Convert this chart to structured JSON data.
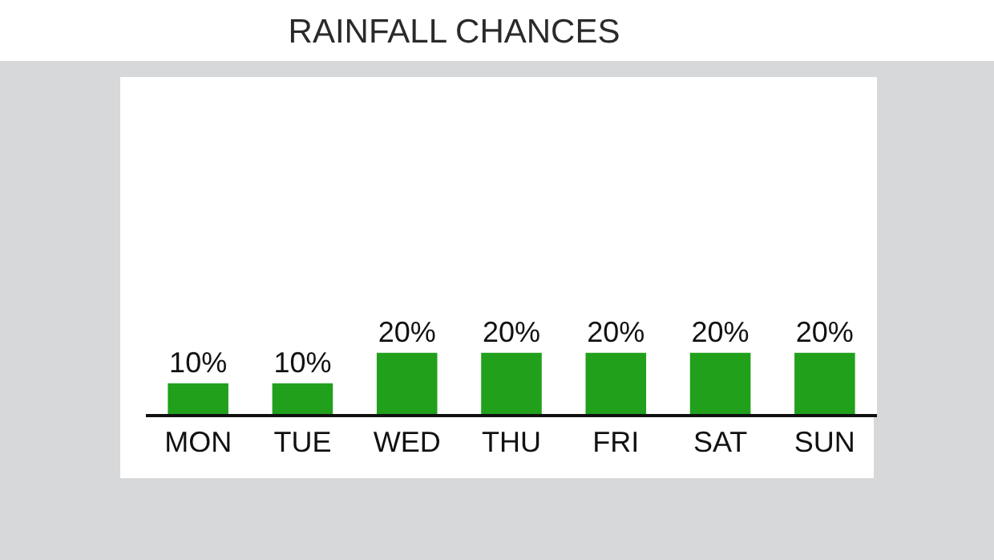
{
  "chart_data": {
    "type": "bar",
    "title": "RAINFALL CHANCES",
    "categories": [
      "MON",
      "TUE",
      "WED",
      "THU",
      "FRI",
      "SAT",
      "SUN"
    ],
    "values": [
      10,
      10,
      20,
      20,
      20,
      20,
      20
    ],
    "value_labels": [
      "10%",
      "10%",
      "20%",
      "20%",
      "20%",
      "20%",
      "20%"
    ],
    "color": "#21a01c",
    "grid": false,
    "legend": false
  }
}
